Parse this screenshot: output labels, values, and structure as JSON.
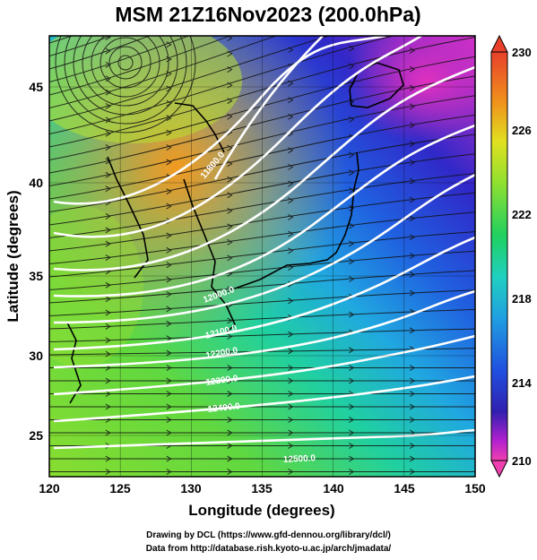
{
  "title": "MSM 21Z16Nov2023 (200.0hPa)",
  "xlabel": "Longitude (degrees)",
  "ylabel": "Latitude  (degrees)",
  "xticks": [
    "120",
    "125",
    "130",
    "135",
    "140",
    "145",
    "150"
  ],
  "yticks": [
    "25",
    "30",
    "35",
    "40",
    "45"
  ],
  "colorbar": {
    "ticks": [
      "230",
      "226",
      "222",
      "218",
      "214",
      "210"
    ],
    "range": [
      210,
      230
    ]
  },
  "contour_labels": [
    "11800.0",
    "12000.0",
    "12100.0",
    "12200.0",
    "12300.0",
    "12400.0",
    "12500.0"
  ],
  "footer": {
    "line1": "Drawing by DCL (https://www.gfd-dennou.org/library/dcl/)",
    "line2": "Data from http://database.rish.kyoto-u.ac.jp/arch/jmadata/"
  },
  "map_data": {
    "type": "heatmap",
    "variable": "temperature (K) with wind streamlines and geopotential height contours",
    "level": "200.0hPa",
    "xlim": [
      120,
      150
    ],
    "ylim": [
      22.5,
      48
    ],
    "color_range": [
      210,
      230
    ]
  }
}
